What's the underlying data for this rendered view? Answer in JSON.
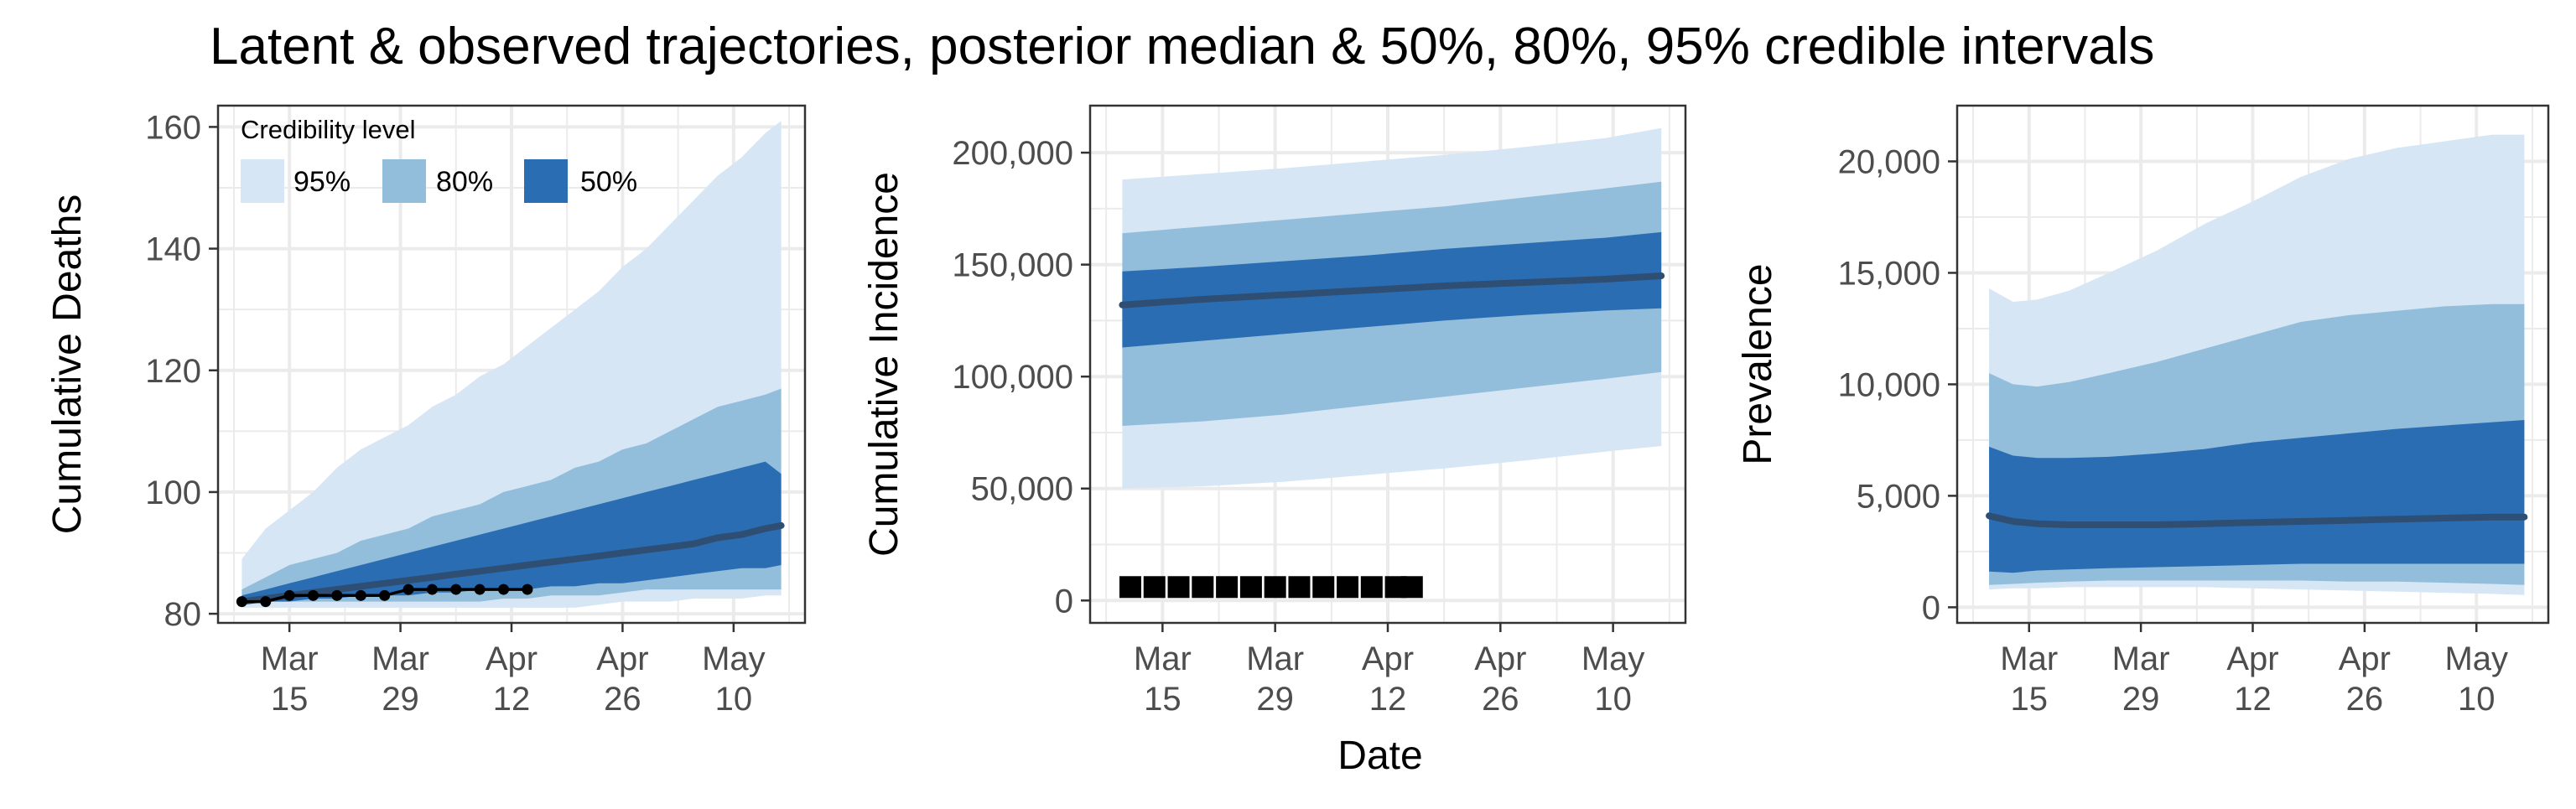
{
  "title": "Latent & observed trajectories, posterior median & 50%, 80%, 95% credible intervals",
  "shared_xlabel": "Date",
  "x_ticks": [
    {
      "date": "2020-03-15",
      "line1": "Mar",
      "line2": "15"
    },
    {
      "date": "2020-03-29",
      "line1": "Mar",
      "line2": "29"
    },
    {
      "date": "2020-04-12",
      "line1": "Apr",
      "line2": "12"
    },
    {
      "date": "2020-04-26",
      "line1": "Apr",
      "line2": "26"
    },
    {
      "date": "2020-05-10",
      "line1": "May",
      "line2": "10"
    }
  ],
  "legend": {
    "title": "Credibility level",
    "items": [
      {
        "label": "95%",
        "color": "#d6e6f5"
      },
      {
        "label": "80%",
        "color": "#92bedb"
      },
      {
        "label": "50%",
        "color": "#2b6db3"
      }
    ]
  },
  "colors": {
    "band95": "#d6e6f5",
    "band80": "#92bedb",
    "band50": "#2b6db3",
    "median": "#2e4f73",
    "observed": "#000000",
    "grid": "#ebebeb",
    "border": "#333333"
  },
  "chart_data": [
    {
      "type": "area",
      "ylabel": "Cumulative Deaths",
      "xlim": [
        "2020-03-06",
        "2020-05-19"
      ],
      "ylim": [
        78.5,
        163.5
      ],
      "y_ticks": [
        80,
        100,
        120,
        140,
        160
      ],
      "y_tick_labels": [
        "80",
        "100",
        "120",
        "140",
        "160"
      ],
      "x": [
        "2020-03-09",
        "2020-03-12",
        "2020-03-15",
        "2020-03-18",
        "2020-03-21",
        "2020-03-24",
        "2020-03-27",
        "2020-03-30",
        "2020-04-02",
        "2020-04-05",
        "2020-04-08",
        "2020-04-11",
        "2020-04-14",
        "2020-04-17",
        "2020-04-20",
        "2020-04-23",
        "2020-04-26",
        "2020-04-29",
        "2020-05-02",
        "2020-05-05",
        "2020-05-08",
        "2020-05-11",
        "2020-05-14",
        "2020-05-16"
      ],
      "median": [
        82,
        82.5,
        83,
        83.5,
        84,
        84.5,
        85,
        85.5,
        86,
        86.5,
        87,
        87.5,
        88,
        88.5,
        89,
        89.5,
        90,
        90.5,
        91,
        91.5,
        92.5,
        93,
        94,
        94.5
      ],
      "band50": {
        "lower": [
          82,
          82,
          82,
          82.5,
          82.5,
          83,
          83,
          83,
          83.5,
          83.5,
          84,
          84,
          84,
          84.5,
          84.5,
          85,
          85,
          85.5,
          86,
          86.5,
          87,
          87.5,
          87.5,
          88
        ],
        "upper": [
          83,
          84,
          85,
          86,
          87,
          88,
          89,
          90,
          91,
          92,
          93,
          94,
          95,
          96,
          97,
          98,
          99,
          100,
          101,
          102,
          103,
          104,
          105,
          103
        ]
      },
      "band80": {
        "lower": [
          82,
          82,
          82,
          82,
          82,
          82,
          82,
          82,
          82,
          82,
          82,
          82.5,
          82.5,
          83,
          83,
          83,
          83.5,
          84,
          84,
          84,
          84,
          84,
          84,
          84
        ]
      },
      "band80_upper": [
        84,
        86,
        88,
        89,
        90,
        92,
        93,
        94,
        96,
        97,
        98,
        100,
        101,
        102,
        104,
        105,
        107,
        108,
        110,
        112,
        114,
        115,
        116,
        117
      ],
      "band95": {
        "lower": [
          81,
          81,
          81,
          81,
          81,
          81,
          81,
          81,
          81,
          81,
          81,
          81,
          81,
          81,
          81,
          81.5,
          82,
          82,
          82,
          82.5,
          82.5,
          82.5,
          83,
          83
        ],
        "upper": [
          89,
          94,
          97,
          100,
          104,
          107,
          109,
          111,
          114,
          116,
          119,
          121,
          124,
          127,
          130,
          133,
          137,
          140,
          144,
          148,
          152,
          155,
          159,
          161
        ]
      },
      "observed": {
        "x": [
          "2020-03-09",
          "2020-03-12",
          "2020-03-15",
          "2020-03-18",
          "2020-03-21",
          "2020-03-24",
          "2020-03-27",
          "2020-03-30",
          "2020-04-02",
          "2020-04-05",
          "2020-04-08",
          "2020-04-11",
          "2020-04-14"
        ],
        "y": [
          82,
          82,
          83,
          83,
          83,
          83,
          83,
          84,
          84,
          84,
          84,
          84,
          84
        ],
        "style": "line-points"
      },
      "legend_inside": "top-left"
    },
    {
      "type": "area",
      "ylabel": "Cumulative Incidence",
      "xlim": [
        "2020-03-06",
        "2020-05-19"
      ],
      "ylim": [
        -10000,
        221000
      ],
      "y_ticks": [
        0,
        50000,
        100000,
        150000,
        200000
      ],
      "y_tick_labels": [
        "0",
        "50,000",
        "100,000",
        "150,000",
        "200,000"
      ],
      "x": [
        "2020-03-10",
        "2020-03-20",
        "2020-03-30",
        "2020-04-09",
        "2020-04-19",
        "2020-04-29",
        "2020-05-09",
        "2020-05-16"
      ],
      "median": [
        132000,
        134500,
        136500,
        138500,
        140500,
        142000,
        143500,
        145000
      ],
      "band50": {
        "lower": [
          113000,
          116000,
          119000,
          122000,
          125000,
          127500,
          129500,
          130500
        ],
        "upper": [
          147000,
          149000,
          151500,
          154000,
          157000,
          159500,
          162000,
          164500
        ]
      },
      "band80": {
        "lower": [
          78000,
          80000,
          83000,
          87000,
          91000,
          95000,
          99000,
          102000
        ],
        "upper": [
          164000,
          167000,
          170000,
          173000,
          176000,
          180000,
          184000,
          187000
        ]
      },
      "band95": {
        "lower": [
          50000,
          51000,
          53000,
          56000,
          59000,
          62500,
          66500,
          69000
        ],
        "upper": [
          188000,
          190500,
          193000,
          196000,
          199000,
          202500,
          206500,
          211000
        ]
      },
      "observed": {
        "x": [
          "2020-03-11",
          "2020-03-14",
          "2020-03-17",
          "2020-03-20",
          "2020-03-23",
          "2020-03-26",
          "2020-03-29",
          "2020-04-01",
          "2020-04-04",
          "2020-04-07",
          "2020-04-10",
          "2020-04-13",
          "2020-04-15"
        ],
        "y": [
          6000,
          6000,
          6000,
          6000,
          6000,
          6000,
          6000,
          6000,
          6000,
          6000,
          6000,
          6000,
          6000
        ],
        "style": "squares"
      }
    },
    {
      "type": "area",
      "ylabel": "Prevalence",
      "xlim": [
        "2020-03-06",
        "2020-05-19"
      ],
      "ylim": [
        -700,
        22500
      ],
      "y_ticks": [
        0,
        5000,
        10000,
        15000,
        20000
      ],
      "y_tick_labels": [
        "0",
        "5,000",
        "10,000",
        "15,000",
        "20,000"
      ],
      "x": [
        "2020-03-10",
        "2020-03-13",
        "2020-03-16",
        "2020-03-20",
        "2020-03-25",
        "2020-03-31",
        "2020-04-06",
        "2020-04-12",
        "2020-04-18",
        "2020-04-24",
        "2020-04-30",
        "2020-05-06",
        "2020-05-12",
        "2020-05-16"
      ],
      "median": [
        4100,
        3850,
        3750,
        3700,
        3700,
        3700,
        3750,
        3800,
        3850,
        3900,
        3950,
        4000,
        4050,
        4050
      ],
      "band50": {
        "lower": [
          1600,
          1550,
          1650,
          1700,
          1750,
          1800,
          1850,
          1900,
          1950,
          1950,
          1950,
          1950,
          1950,
          1950
        ],
        "upper": [
          7200,
          6800,
          6700,
          6700,
          6750,
          6900,
          7100,
          7400,
          7600,
          7800,
          8000,
          8150,
          8300,
          8400
        ]
      },
      "band80": {
        "lower": [
          1000,
          1050,
          1100,
          1150,
          1200,
          1200,
          1200,
          1200,
          1200,
          1150,
          1150,
          1100,
          1050,
          1000
        ],
        "upper": [
          10500,
          10000,
          9900,
          10100,
          10500,
          11000,
          11600,
          12200,
          12800,
          13100,
          13300,
          13500,
          13600,
          13600
        ]
      },
      "band95": {
        "lower": [
          800,
          850,
          850,
          900,
          900,
          900,
          900,
          850,
          800,
          750,
          700,
          650,
          600,
          550
        ],
        "upper": [
          14300,
          13700,
          13800,
          14200,
          15000,
          16000,
          17200,
          18200,
          19300,
          20100,
          20600,
          20900,
          21200,
          21200
        ]
      }
    }
  ]
}
